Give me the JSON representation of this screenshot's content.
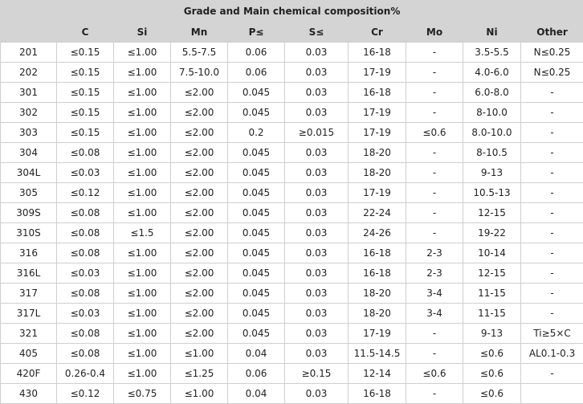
{
  "table": {
    "title": "Grade and Main chemical composition%",
    "columns": [
      "",
      "C",
      "Si",
      "Mn",
      "P≤",
      "S≤",
      "Cr",
      "Mo",
      "Ni",
      "Other"
    ],
    "rows": [
      [
        "201",
        "≤0.15",
        "≤1.00",
        "5.5-7.5",
        "0.06",
        "0.03",
        "16-18",
        "-",
        "3.5-5.5",
        "N≤0.25"
      ],
      [
        "202",
        "≤0.15",
        "≤1.00",
        "7.5-10.0",
        "0.06",
        "0.03",
        "17-19",
        "-",
        "4.0-6.0",
        "N≤0.25"
      ],
      [
        "301",
        "≤0.15",
        "≤1.00",
        "≤2.00",
        "0.045",
        "0.03",
        "16-18",
        "-",
        "6.0-8.0",
        "-"
      ],
      [
        "302",
        "≤0.15",
        "≤1.00",
        "≤2.00",
        "0.045",
        "0.03",
        "17-19",
        "-",
        "8-10.0",
        "-"
      ],
      [
        "303",
        "≤0.15",
        "≤1.00",
        "≤2.00",
        "0.2",
        "≥0.015",
        "17-19",
        "≤0.6",
        "8.0-10.0",
        "-"
      ],
      [
        "304",
        "≤0.08",
        "≤1.00",
        "≤2.00",
        "0.045",
        "0.03",
        "18-20",
        "-",
        "8-10.5",
        "-"
      ],
      [
        "304L",
        "≤0.03",
        "≤1.00",
        "≤2.00",
        "0.045",
        "0.03",
        "18-20",
        "-",
        "9-13",
        "-"
      ],
      [
        "305",
        "≤0.12",
        "≤1.00",
        "≤2.00",
        "0.045",
        "0.03",
        "17-19",
        "-",
        "10.5-13",
        "-"
      ],
      [
        "309S",
        "≤0.08",
        "≤1.00",
        "≤2.00",
        "0.045",
        "0.03",
        "22-24",
        "-",
        "12-15",
        "-"
      ],
      [
        "310S",
        "≤0.08",
        "≤1.5",
        "≤2.00",
        "0.045",
        "0.03",
        "24-26",
        "-",
        "19-22",
        "-"
      ],
      [
        "316",
        "≤0.08",
        "≤1.00",
        "≤2.00",
        "0.045",
        "0.03",
        "16-18",
        "2-3",
        "10-14",
        "-"
      ],
      [
        "316L",
        "≤0.03",
        "≤1.00",
        "≤2.00",
        "0.045",
        "0.03",
        "16-18",
        "2-3",
        "12-15",
        "-"
      ],
      [
        "317",
        "≤0.08",
        "≤1.00",
        "≤2.00",
        "0.045",
        "0.03",
        "18-20",
        "3-4",
        "11-15",
        "-"
      ],
      [
        "317L",
        "≤0.03",
        "≤1.00",
        "≤2.00",
        "0.045",
        "0.03",
        "18-20",
        "3-4",
        "11-15",
        "-"
      ],
      [
        "321",
        "≤0.08",
        "≤1.00",
        "≤2.00",
        "0.045",
        "0.03",
        "17-19",
        "-",
        "9-13",
        "Ti≥5×C"
      ],
      [
        "405",
        "≤0.08",
        "≤1.00",
        "≤1.00",
        "0.04",
        "0.03",
        "11.5-14.5",
        "-",
        "≤0.6",
        "AL0.1-0.3"
      ],
      [
        "420F",
        "0.26-0.4",
        "≤1.00",
        "≤1.25",
        "0.06",
        "≥0.15",
        "12-14",
        "≤0.6",
        "≤0.6",
        "-"
      ],
      [
        "430",
        "≤0.12",
        "≤0.75",
        "≤1.00",
        "0.04",
        "0.03",
        "16-18",
        "-",
        "≤0.6",
        ""
      ]
    ]
  }
}
